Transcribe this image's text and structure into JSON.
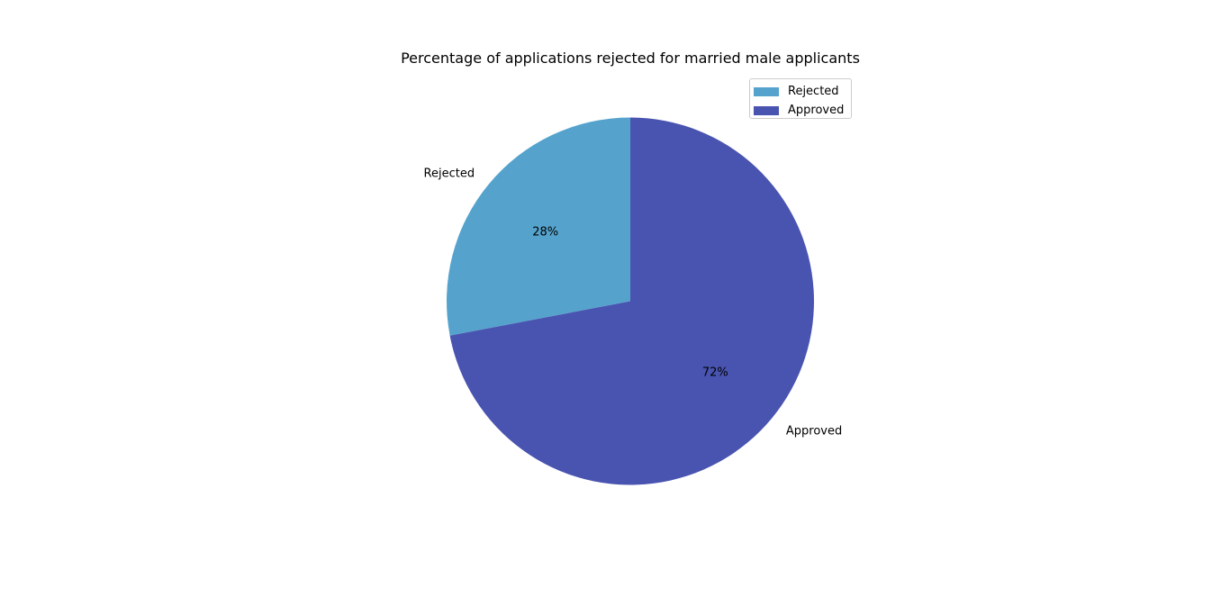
{
  "chart_data": {
    "type": "pie",
    "title": "Percentage of applications rejected for married male applicants",
    "categories": [
      "Rejected",
      "Approved"
    ],
    "values": [
      28,
      72
    ],
    "value_labels": [
      "28%",
      "72%"
    ],
    "colors": [
      "#55a3cd",
      "#4954b0"
    ],
    "start_angle_deg": 90,
    "direction": "counterclockwise",
    "legend": {
      "position": "upper-right",
      "entries": [
        "Rejected",
        "Approved"
      ]
    }
  }
}
